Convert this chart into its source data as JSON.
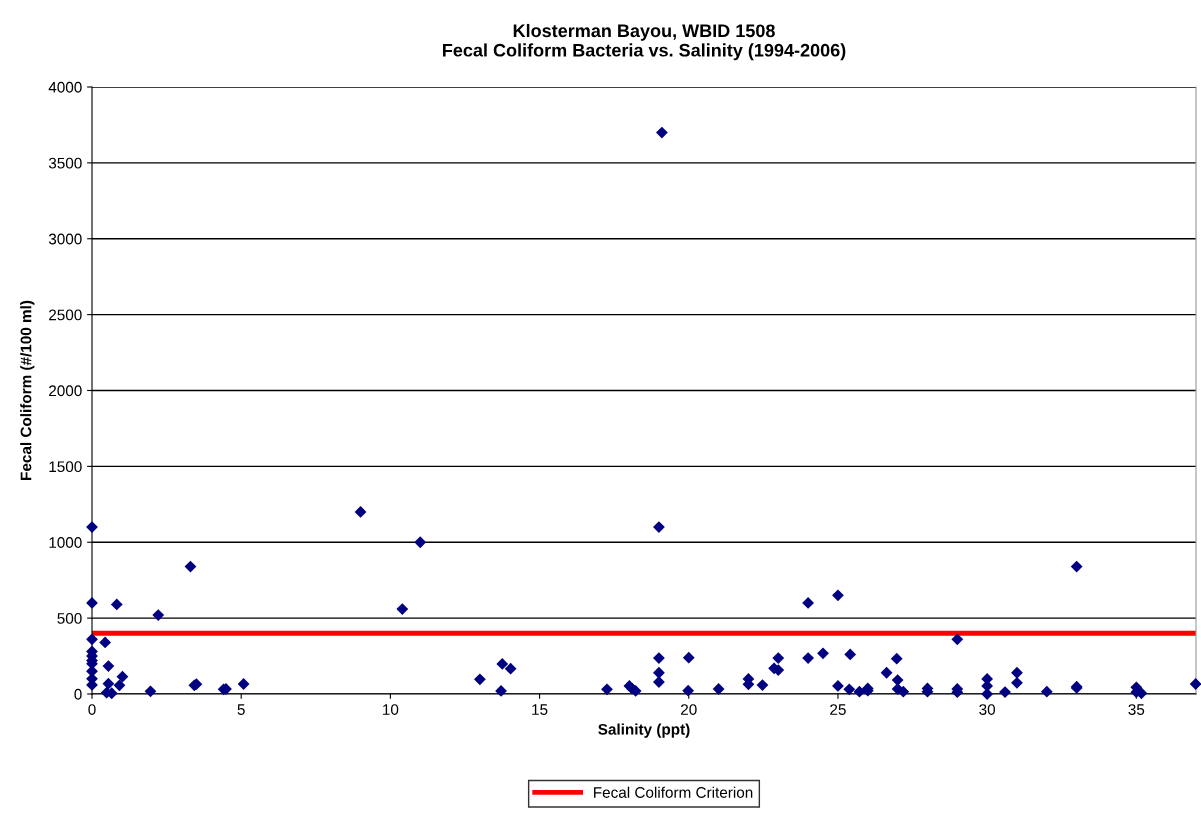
{
  "chart_data": {
    "type": "scatter",
    "title": "Klosterman Bayou, WBID 1508\nFecal Coliform Bacteria vs. Salinity (1994-2006)",
    "xlabel": "Salinity (ppt)",
    "ylabel": "Fecal Coliform (#/100 ml)",
    "series": [
      {
        "color": "#000080",
        "x": [
          0,
          0,
          0,
          0,
          0,
          0,
          0,
          0,
          0,
          0,
          0.44,
          0.83,
          0.55,
          0.55,
          0.49,
          0.66,
          0.92,
          1.02,
          1.96,
          2.22,
          3.3,
          3.43,
          3.5,
          4.41,
          4.49,
          5.08,
          9.0,
          10.4,
          11.0,
          13.0,
          13.75,
          13.71,
          14.03,
          17.26,
          18.01,
          18.22,
          18.1,
          19.0,
          19.1,
          19.0,
          19.0,
          19.0,
          20.0,
          19.98,
          21.0,
          22.0,
          22.0,
          22.47,
          22.86,
          23.0,
          23.0,
          24.0,
          24.0,
          24.5,
          25.0,
          25.0,
          25.41,
          25.38,
          25.72,
          26.0,
          26.0,
          26.63,
          26.97,
          27.0,
          27.0,
          27.19,
          28.0,
          28.0,
          29.0,
          29.0,
          29.0,
          30.0,
          30.0,
          30.0,
          30.6,
          31.0,
          31.0,
          32.0,
          33.0,
          33.0,
          33.0,
          35.0,
          35.0,
          35.17,
          36.99
        ],
        "values": [
          1100,
          600,
          360,
          280,
          250,
          220,
          200,
          150,
          100,
          60,
          340,
          590,
          184,
          68,
          9,
          5,
          57,
          114,
          18,
          520,
          840,
          57,
          65,
          31,
          33,
          66,
          1200,
          560,
          1000,
          97,
          198,
          20,
          167,
          31,
          53,
          20,
          35,
          1100,
          3700,
          237,
          140,
          79,
          239,
          22,
          33,
          99,
          64,
          59,
          169,
          158,
          237,
          600,
          237,
          268,
          650,
          53,
          261,
          31,
          15,
          37,
          22,
          140,
          233,
          92,
          33,
          15,
          37,
          15,
          360,
          33,
          12,
          99,
          53,
          0,
          13,
          140,
          74,
          15,
          840,
          48,
          40,
          44,
          12,
          5,
          66
        ]
      }
    ],
    "marker": "diamond",
    "xlim": [
      0,
      37
    ],
    "xticks": [
      0,
      5,
      10,
      15,
      20,
      25,
      30,
      35
    ],
    "ylim": [
      0,
      4000
    ],
    "yticks": [
      0,
      500,
      1000,
      1500,
      2000,
      2500,
      3000,
      3500,
      4000
    ],
    "grid": "y",
    "ref_lines": [
      {
        "axis": "y",
        "value": 400,
        "label": "Fecal Coliform Criterion",
        "color": "#ff0000"
      }
    ],
    "legend": "bottom"
  }
}
